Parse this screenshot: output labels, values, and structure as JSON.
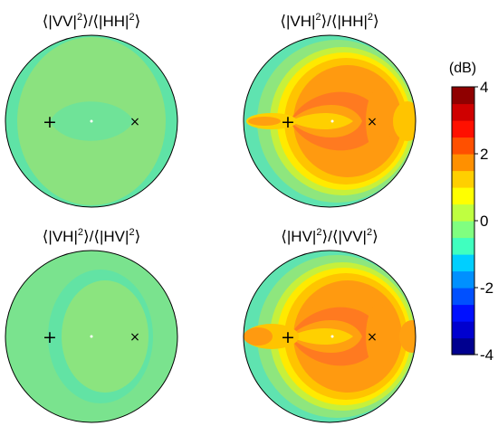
{
  "chart_data": {
    "type": "heatmap",
    "colorbar": {
      "unit": "(dB)",
      "range": [
        -4,
        4
      ],
      "ticks": [
        {
          "value": 4,
          "label": "4"
        },
        {
          "value": 2,
          "label": "2"
        },
        {
          "value": 0,
          "label": "0"
        },
        {
          "value": -2,
          "label": "-2"
        },
        {
          "value": -4,
          "label": "-4"
        }
      ],
      "colors": [
        "#00008f",
        "#0000cf",
        "#0010ff",
        "#0050ff",
        "#0090ff",
        "#00cfff",
        "#40ffbf",
        "#80ff80",
        "#bfff40",
        "#ffff00",
        "#ffcf00",
        "#ff9000",
        "#ff5000",
        "#ff1000",
        "#cf0000",
        "#8f0000"
      ]
    },
    "panels": [
      {
        "title_parts": [
          "⟨|VV|",
          "2",
          "⟩/⟨|HH|",
          "2",
          "⟩"
        ],
        "fill": "#7fe38a",
        "markers": {
          "plus": "+",
          "cross": "×"
        },
        "field_note_db": [
          -0.4,
          0.6
        ]
      },
      {
        "title_parts": [
          "⟨|VH|",
          "2",
          "⟩/⟨|HH|",
          "2",
          "⟩"
        ],
        "fill": "#a8ed6a",
        "markers": {
          "plus": "+",
          "cross": "×"
        },
        "field_note_db": [
          -0.5,
          2.7
        ]
      },
      {
        "title_parts": [
          "⟨|VH|",
          "2",
          "⟩/⟨|HV|",
          "2",
          "⟩"
        ],
        "fill": "#8aea7f",
        "markers": {
          "plus": "+",
          "cross": "×"
        },
        "field_note_db": [
          -0.3,
          0.3
        ]
      },
      {
        "title_parts": [
          "⟨|HV|",
          "2",
          "⟩/⟨|VV|",
          "2",
          "⟩"
        ],
        "fill": "#a8ed6a",
        "markers": {
          "plus": "+",
          "cross": "×"
        },
        "field_note_db": [
          -0.5,
          2.7
        ]
      }
    ]
  }
}
